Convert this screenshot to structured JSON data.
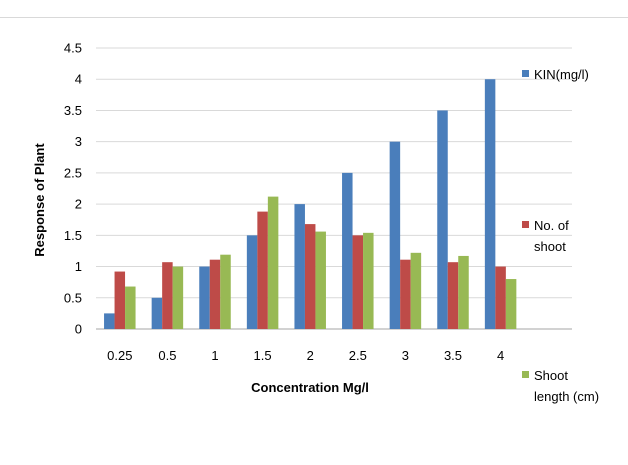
{
  "chart_data": {
    "type": "bar",
    "title": "",
    "xlabel": "Concentration Mg/l",
    "ylabel": "Response of Plant",
    "ylim": [
      0,
      4.5
    ],
    "yticks": [
      "0",
      "0.5",
      "1",
      "1.5",
      "2",
      "2.5",
      "3",
      "3.5",
      "4",
      "4.5"
    ],
    "categories": [
      "0.25",
      "0.5",
      "1",
      "1.5",
      "2",
      "2.5",
      "3",
      "3.5",
      "4"
    ],
    "grid": true,
    "legend_position": "right",
    "series": [
      {
        "name": "KIN(mg/l)",
        "legend_lines": [
          "KIN(mg/l)"
        ],
        "color": "#4a7ebb",
        "values": [
          0.25,
          0.5,
          1,
          1.5,
          2,
          2.5,
          3,
          3.5,
          4
        ]
      },
      {
        "name": "No. of shoot",
        "legend_lines": [
          "No. of",
          "shoot"
        ],
        "color": "#be4b48",
        "values": [
          0.92,
          1.07,
          1.11,
          1.88,
          1.68,
          1.5,
          1.11,
          1.07,
          1.0
        ]
      },
      {
        "name": "Shoot length (cm)",
        "legend_lines": [
          "Shoot",
          "length (cm)"
        ],
        "color": "#98b954",
        "values": [
          0.68,
          1.0,
          1.19,
          2.12,
          1.56,
          1.54,
          1.22,
          1.17,
          0.8
        ]
      }
    ]
  }
}
